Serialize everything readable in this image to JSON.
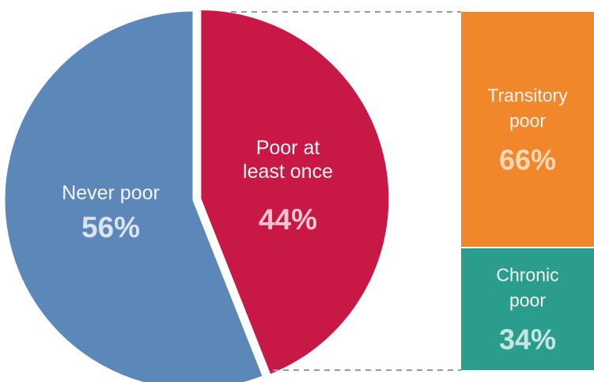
{
  "chart_data": [
    {
      "type": "pie",
      "slices": [
        {
          "label": "Never poor",
          "value": 56,
          "value_label": "56%",
          "color": "#5b87b9",
          "value_color": "#dbe4ee"
        },
        {
          "label_lines": [
            "Poor at",
            "least once"
          ],
          "label": "Poor at least once",
          "value": 44,
          "value_label": "44%",
          "color": "#c81846",
          "value_color": "#f0c6d1"
        }
      ]
    },
    {
      "type": "bar",
      "stacked": true,
      "breakdown_of": "Poor at least once",
      "segments": [
        {
          "label_lines": [
            "Transitory",
            "poor"
          ],
          "label": "Transitory poor",
          "value": 66,
          "value_label": "66%",
          "color": "#f0872a",
          "value_color": "#fbd7b5"
        },
        {
          "label_lines": [
            "Chronic",
            "poor"
          ],
          "label": "Chronic poor",
          "value": 34,
          "value_label": "34%",
          "color": "#2a9d8c",
          "value_color": "#c6e6e0"
        }
      ],
      "connector": "dashed"
    }
  ]
}
